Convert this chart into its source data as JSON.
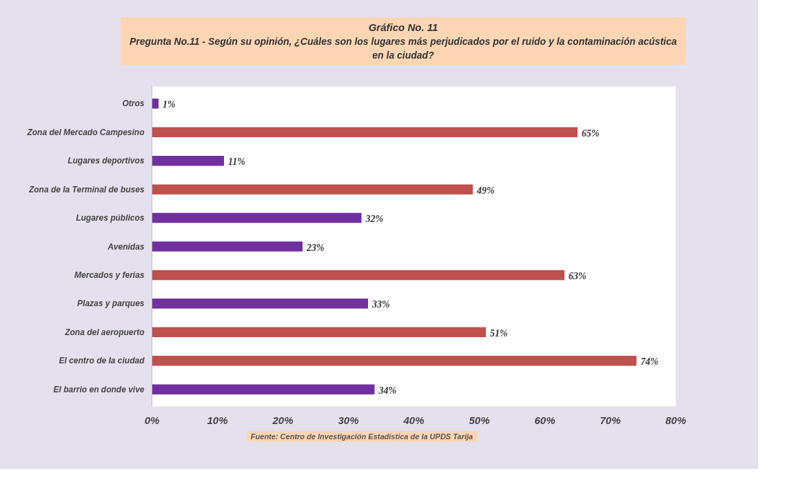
{
  "chart_data": {
    "type": "bar",
    "orientation": "horizontal",
    "title": "Gráfico No. 11",
    "subtitle": "Pregunta No.11 - Según su opinión, ¿Cuáles son los lugares más perjudicados por el ruido y la contaminación acústica en la ciudad?",
    "categories": [
      "Otros",
      "Zona del Mercado Campesino",
      "Lugares deportivos",
      "Zona de la Terminal de buses",
      "Lugares públicos",
      "Avenidas",
      "Mercados y ferias",
      "Plazas y parques",
      "Zona del aeropuerto",
      "El centro de la ciudad",
      "El barrio en donde vive"
    ],
    "values": [
      1,
      65,
      11,
      49,
      32,
      23,
      63,
      33,
      51,
      74,
      34
    ],
    "colors": [
      "#7030a0",
      "#c0504d",
      "#7030a0",
      "#c0504d",
      "#7030a0",
      "#7030a0",
      "#c0504d",
      "#7030a0",
      "#c0504d",
      "#c0504d",
      "#7030a0"
    ],
    "value_labels": [
      "1%",
      "65%",
      "11%",
      "49%",
      "32%",
      "23%",
      "63%",
      "33%",
      "51%",
      "74%",
      "34%"
    ],
    "xlim": [
      0,
      80
    ],
    "xticks": [
      {
        "value": 0,
        "label": "0%"
      },
      {
        "value": 10,
        "label": "10%"
      },
      {
        "value": 20,
        "label": "20%"
      },
      {
        "value": 30,
        "label": "30%"
      },
      {
        "value": 40,
        "label": "40%"
      },
      {
        "value": 50,
        "label": "50%"
      },
      {
        "value": 60,
        "label": "60%"
      },
      {
        "value": 70,
        "label": "70%"
      },
      {
        "value": 80,
        "label": "80%"
      }
    ],
    "grid": false,
    "annotations": [
      "Fuente: Centro de Investigación Estadística de la UPDS Tarija"
    ]
  }
}
